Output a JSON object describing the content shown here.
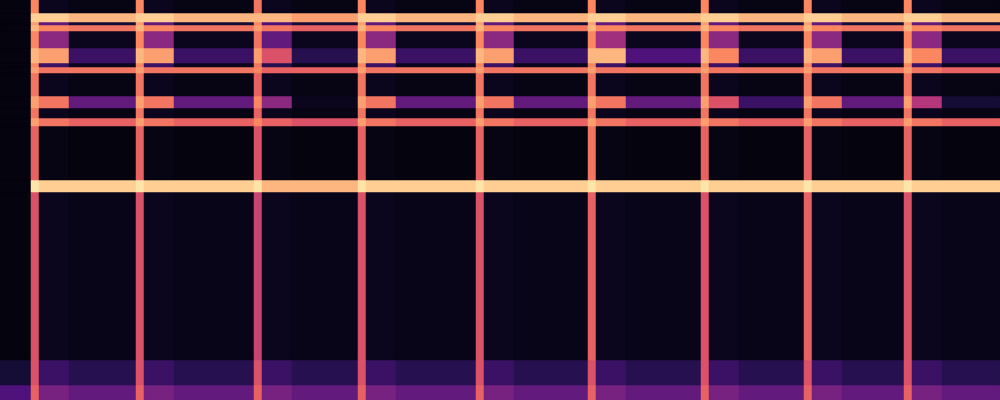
{
  "chart_data": {
    "type": "heatmap",
    "tick_labels": false,
    "xlim": [
      0,
      100
    ],
    "ylim": [
      0,
      40
    ],
    "zlim": [
      0,
      1
    ],
    "x_edges": [
      0,
      3.1,
      3.9,
      6.9,
      13.6,
      14.4,
      17.4,
      25.4,
      26.2,
      29.2,
      35.8,
      36.6,
      39.6,
      47.6,
      48.4,
      51.4,
      58.8,
      59.6,
      62.6,
      70.1,
      70.9,
      73.9,
      80.4,
      81.2,
      84.2,
      90.4,
      91.2,
      94.2,
      100
    ],
    "y_edges": [
      0,
      1.5,
      4,
      20.8,
      22,
      27.4,
      28.2,
      29.2,
      30.4,
      32.7,
      33.3,
      33.7,
      35.2,
      36.9,
      37.5,
      37.8,
      38.7,
      40
    ],
    "cells": [
      [
        0.25,
        0.65,
        0.35,
        0.3,
        0.65,
        0.35,
        0.3,
        0.65,
        0.35,
        0.3,
        0.65,
        0.35,
        0.3,
        0.65,
        0.35,
        0.3,
        0.65,
        0.35,
        0.3,
        0.65,
        0.35,
        0.3,
        0.65,
        0.35,
        0.3,
        0.65,
        0.35,
        0.3
      ],
      [
        0.1,
        0.6,
        0.2,
        0.15,
        0.6,
        0.2,
        0.15,
        0.6,
        0.2,
        0.15,
        0.6,
        0.2,
        0.15,
        0.6,
        0.2,
        0.15,
        0.6,
        0.2,
        0.15,
        0.6,
        0.2,
        0.15,
        0.6,
        0.2,
        0.15,
        0.6,
        0.2,
        0.15
      ],
      [
        0.02,
        0.6,
        0.05,
        0.04,
        0.6,
        0.05,
        0.04,
        0.55,
        0.05,
        0.04,
        0.6,
        0.05,
        0.04,
        0.6,
        0.05,
        0.04,
        0.65,
        0.05,
        0.04,
        0.6,
        0.05,
        0.04,
        0.65,
        0.05,
        0.04,
        0.6,
        0.05,
        0.04
      ],
      [
        0.02,
        0.95,
        0.9,
        0.9,
        0.95,
        0.9,
        0.9,
        0.95,
        0.85,
        0.85,
        0.95,
        0.9,
        0.9,
        0.95,
        0.9,
        0.9,
        0.95,
        0.9,
        0.9,
        0.95,
        0.9,
        0.9,
        0.95,
        0.9,
        0.9,
        0.95,
        0.9,
        0.9
      ],
      [
        0.02,
        0.65,
        0.03,
        0.02,
        0.65,
        0.03,
        0.02,
        0.6,
        0.03,
        0.02,
        0.65,
        0.03,
        0.02,
        0.65,
        0.03,
        0.02,
        0.7,
        0.03,
        0.02,
        0.65,
        0.03,
        0.02,
        0.65,
        0.03,
        0.02,
        0.65,
        0.03,
        0.02
      ],
      [
        0.02,
        0.8,
        0.7,
        0.65,
        0.8,
        0.7,
        0.65,
        0.75,
        0.65,
        0.6,
        0.8,
        0.7,
        0.65,
        0.8,
        0.7,
        0.65,
        0.8,
        0.7,
        0.65,
        0.8,
        0.7,
        0.65,
        0.8,
        0.7,
        0.65,
        0.8,
        0.7,
        0.65
      ],
      [
        0.02,
        0.7,
        0.05,
        0.03,
        0.7,
        0.05,
        0.03,
        0.65,
        0.05,
        0.03,
        0.7,
        0.05,
        0.03,
        0.7,
        0.05,
        0.03,
        0.7,
        0.05,
        0.03,
        0.7,
        0.05,
        0.03,
        0.7,
        0.05,
        0.03,
        0.7,
        0.05,
        0.03
      ],
      [
        0.02,
        0.8,
        0.7,
        0.3,
        0.8,
        0.7,
        0.3,
        0.75,
        0.4,
        0.05,
        0.8,
        0.7,
        0.3,
        0.8,
        0.7,
        0.3,
        0.8,
        0.7,
        0.3,
        0.8,
        0.6,
        0.2,
        0.8,
        0.7,
        0.3,
        0.8,
        0.5,
        0.1
      ],
      [
        0.02,
        0.7,
        0.05,
        0.03,
        0.7,
        0.05,
        0.03,
        0.65,
        0.05,
        0.03,
        0.7,
        0.05,
        0.03,
        0.7,
        0.05,
        0.03,
        0.7,
        0.05,
        0.03,
        0.7,
        0.05,
        0.03,
        0.7,
        0.05,
        0.03,
        0.7,
        0.05,
        0.03
      ],
      [
        0.02,
        0.8,
        0.7,
        0.7,
        0.8,
        0.7,
        0.7,
        0.75,
        0.65,
        0.65,
        0.8,
        0.7,
        0.7,
        0.8,
        0.7,
        0.7,
        0.8,
        0.7,
        0.7,
        0.8,
        0.7,
        0.7,
        0.8,
        0.7,
        0.7,
        0.8,
        0.7,
        0.65
      ],
      [
        0.02,
        0.75,
        0.2,
        0.05,
        0.75,
        0.2,
        0.05,
        0.7,
        0.15,
        0.05,
        0.75,
        0.2,
        0.05,
        0.75,
        0.2,
        0.05,
        0.75,
        0.2,
        0.05,
        0.75,
        0.2,
        0.05,
        0.75,
        0.2,
        0.05,
        0.75,
        0.2,
        0.05
      ],
      [
        0.02,
        0.85,
        0.8,
        0.2,
        0.85,
        0.8,
        0.2,
        0.8,
        0.6,
        0.15,
        0.85,
        0.8,
        0.2,
        0.85,
        0.8,
        0.2,
        0.85,
        0.85,
        0.25,
        0.85,
        0.75,
        0.2,
        0.85,
        0.8,
        0.2,
        0.85,
        0.75,
        0.2
      ],
      [
        0.02,
        0.75,
        0.4,
        0.05,
        0.75,
        0.4,
        0.05,
        0.7,
        0.3,
        0.05,
        0.75,
        0.4,
        0.05,
        0.75,
        0.4,
        0.05,
        0.75,
        0.45,
        0.05,
        0.75,
        0.4,
        0.05,
        0.75,
        0.4,
        0.05,
        0.75,
        0.4,
        0.05
      ],
      [
        0.02,
        0.85,
        0.75,
        0.7,
        0.85,
        0.75,
        0.7,
        0.8,
        0.7,
        0.65,
        0.85,
        0.75,
        0.7,
        0.85,
        0.75,
        0.7,
        0.85,
        0.75,
        0.7,
        0.85,
        0.75,
        0.7,
        0.85,
        0.75,
        0.7,
        0.85,
        0.75,
        0.7
      ],
      [
        0.02,
        0.8,
        0.3,
        0.1,
        0.8,
        0.3,
        0.1,
        0.75,
        0.25,
        0.1,
        0.8,
        0.3,
        0.1,
        0.8,
        0.3,
        0.1,
        0.8,
        0.3,
        0.1,
        0.8,
        0.3,
        0.1,
        0.8,
        0.3,
        0.1,
        0.8,
        0.3,
        0.1
      ],
      [
        0.02,
        0.9,
        0.9,
        0.85,
        0.9,
        0.9,
        0.85,
        0.85,
        0.85,
        0.8,
        0.9,
        0.9,
        0.85,
        0.9,
        0.9,
        0.85,
        0.9,
        0.9,
        0.85,
        0.9,
        0.9,
        0.85,
        0.9,
        0.9,
        0.85,
        0.9,
        0.9,
        0.85
      ],
      [
        0.02,
        0.75,
        0.05,
        0.03,
        0.75,
        0.05,
        0.03,
        0.7,
        0.05,
        0.03,
        0.75,
        0.05,
        0.03,
        0.75,
        0.05,
        0.03,
        0.75,
        0.05,
        0.03,
        0.75,
        0.05,
        0.03,
        0.75,
        0.05,
        0.03,
        0.75,
        0.05,
        0.03
      ]
    ]
  }
}
